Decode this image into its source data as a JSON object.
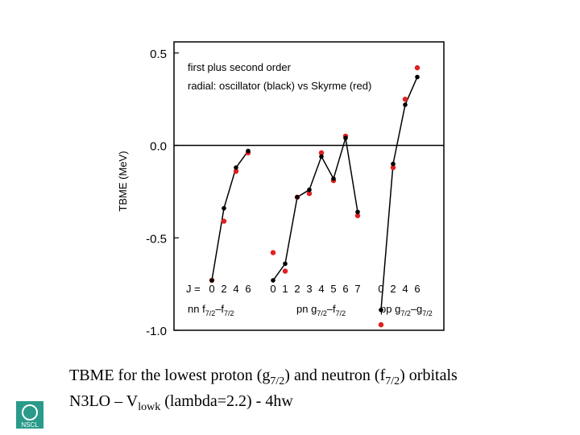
{
  "chart_data": {
    "type": "line",
    "y_label": "TBME (MeV)",
    "annotations": [
      "first plus second order",
      "radial:  oscillator (black) vs Skyrme (red)"
    ],
    "j_prefix": "J =",
    "ylim": [
      -1.0,
      0.56
    ],
    "yticks": [
      {
        "value": -1.0,
        "label": "-1.0"
      },
      -0.5,
      {
        "value": 0.0,
        "label": "0.0"
      },
      0.5
    ],
    "colors": {
      "oscillator": "#000000",
      "skyrme": "#e02020"
    },
    "groups": [
      {
        "label": [
          "nn f",
          "7/2",
          "–f",
          "7/2"
        ],
        "J": [
          0,
          2,
          4,
          6
        ],
        "oscillator": [
          -0.73,
          -0.34,
          -0.12,
          -0.03
        ],
        "skyrme": [
          -0.73,
          -0.41,
          -0.14,
          -0.04
        ]
      },
      {
        "label": [
          "pn g",
          "7/2",
          "–f",
          "7/2"
        ],
        "J": [
          0,
          1,
          2,
          3,
          4,
          5,
          6,
          7
        ],
        "oscillator": [
          -0.73,
          -0.64,
          -0.28,
          -0.24,
          -0.06,
          -0.18,
          0.04,
          -0.36
        ],
        "skyrme": [
          -0.58,
          -0.68,
          -0.28,
          -0.26,
          -0.04,
          -0.19,
          0.05,
          -0.38
        ]
      },
      {
        "label": [
          "pp g",
          "7/2",
          "–g",
          "7/2"
        ],
        "J": [
          0,
          2,
          4,
          6
        ],
        "oscillator": [
          -0.89,
          -0.1,
          0.22,
          0.37
        ],
        "skyrme": [
          -0.97,
          -0.12,
          0.25,
          0.42
        ]
      }
    ]
  },
  "caption": {
    "line1": [
      "TBME for the lowest proton (g",
      "7/2",
      ") and neutron (f",
      "7/2",
      ") orbitals"
    ],
    "line2": [
      "N3LO – V",
      "lowk",
      " (lambda=2.2)  - 4hw"
    ]
  },
  "logo": "NSCL"
}
